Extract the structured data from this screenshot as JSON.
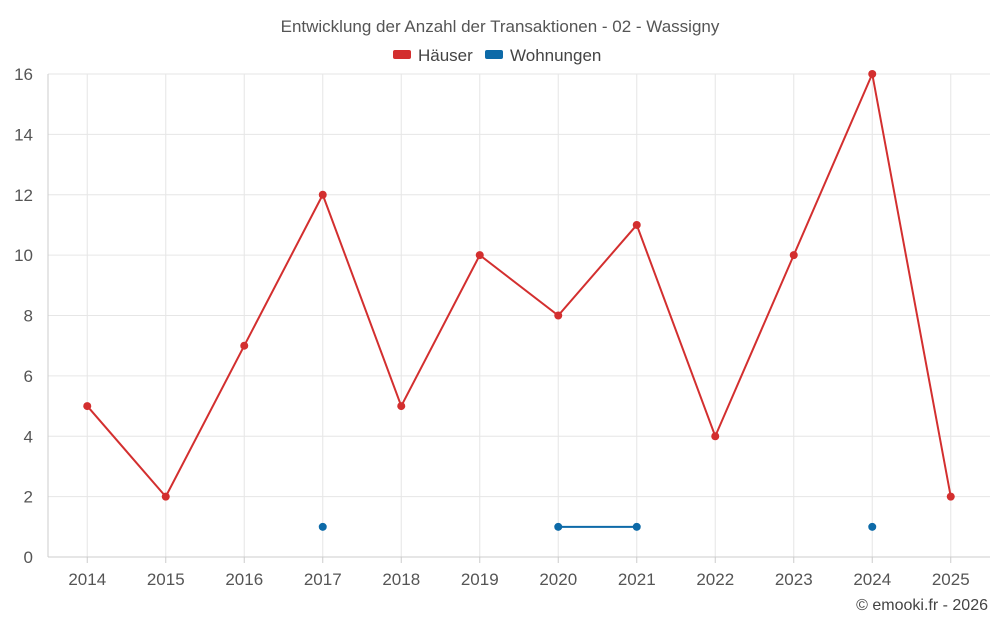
{
  "chart_data": {
    "type": "line",
    "title": "Entwicklung der Anzahl der Transaktionen - 02 - Wassigny",
    "categories": [
      "2014",
      "2015",
      "2016",
      "2017",
      "2018",
      "2019",
      "2020",
      "2021",
      "2022",
      "2023",
      "2024",
      "2025"
    ],
    "ylim": [
      0,
      16
    ],
    "yticks": [
      0,
      2,
      4,
      6,
      8,
      10,
      12,
      14,
      16
    ],
    "grid": true,
    "legend_position": "top-center",
    "series": [
      {
        "name": "Häuser",
        "color": "#d32f2f",
        "values": [
          5,
          2,
          7,
          12,
          5,
          10,
          8,
          11,
          4,
          10,
          16,
          2
        ]
      },
      {
        "name": "Wohnungen",
        "color": "#0d6aa8",
        "values": [
          null,
          null,
          null,
          1,
          null,
          null,
          1,
          1,
          null,
          null,
          1,
          null
        ]
      }
    ]
  },
  "credit": "© emooki.fr - 2026"
}
